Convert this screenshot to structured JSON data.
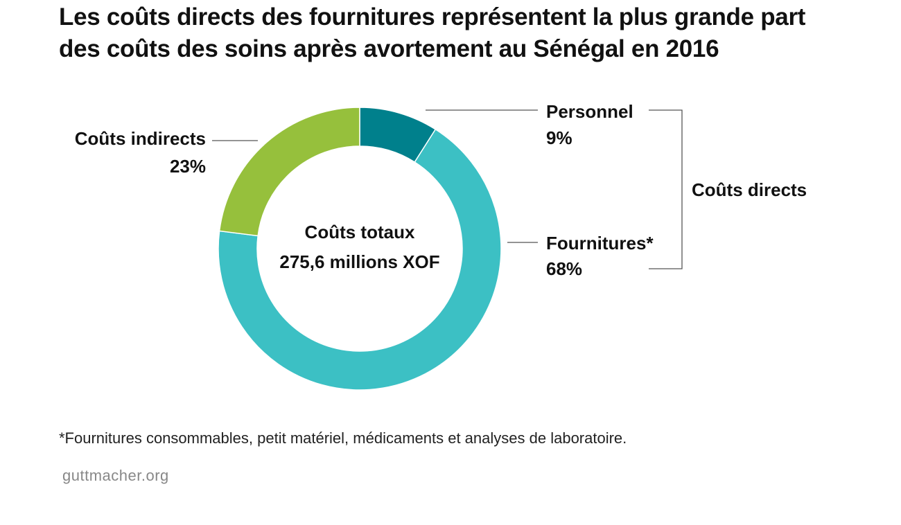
{
  "title": {
    "line1": "Les coûts directs des fournitures représentent la plus grande part",
    "line2": "des coûts des soins après avortement au Sénégal en 2016"
  },
  "center": {
    "line1": "Coûts totaux",
    "line2": "275,6 millions XOF"
  },
  "bracket_label": "Coûts directs",
  "footnote": "*Fournitures consommables, petit matériel, médicaments et analyses de laboratoire.",
  "source": "guttmacher.org",
  "colors": {
    "personnel": "#00808c",
    "fournitures": "#3cc0c4",
    "indirects": "#96c03c"
  },
  "chart_data": {
    "type": "pie",
    "variant": "donut",
    "title": "Les coûts directs des fournitures représentent la plus grande part des coûts des soins après avortement au Sénégal en 2016",
    "unit": "%",
    "total_label": "Coûts totaux 275,6 millions XOF",
    "slices": [
      {
        "label": "Personnel",
        "value": 9,
        "value_label": "9%",
        "color": "#00808c",
        "group": "Coûts directs"
      },
      {
        "label": "Fournitures*",
        "value": 68,
        "value_label": "68%",
        "color": "#3cc0c4",
        "group": "Coûts directs"
      },
      {
        "label": "Coûts indirects",
        "value": 23,
        "value_label": "23%",
        "color": "#96c03c"
      }
    ]
  }
}
